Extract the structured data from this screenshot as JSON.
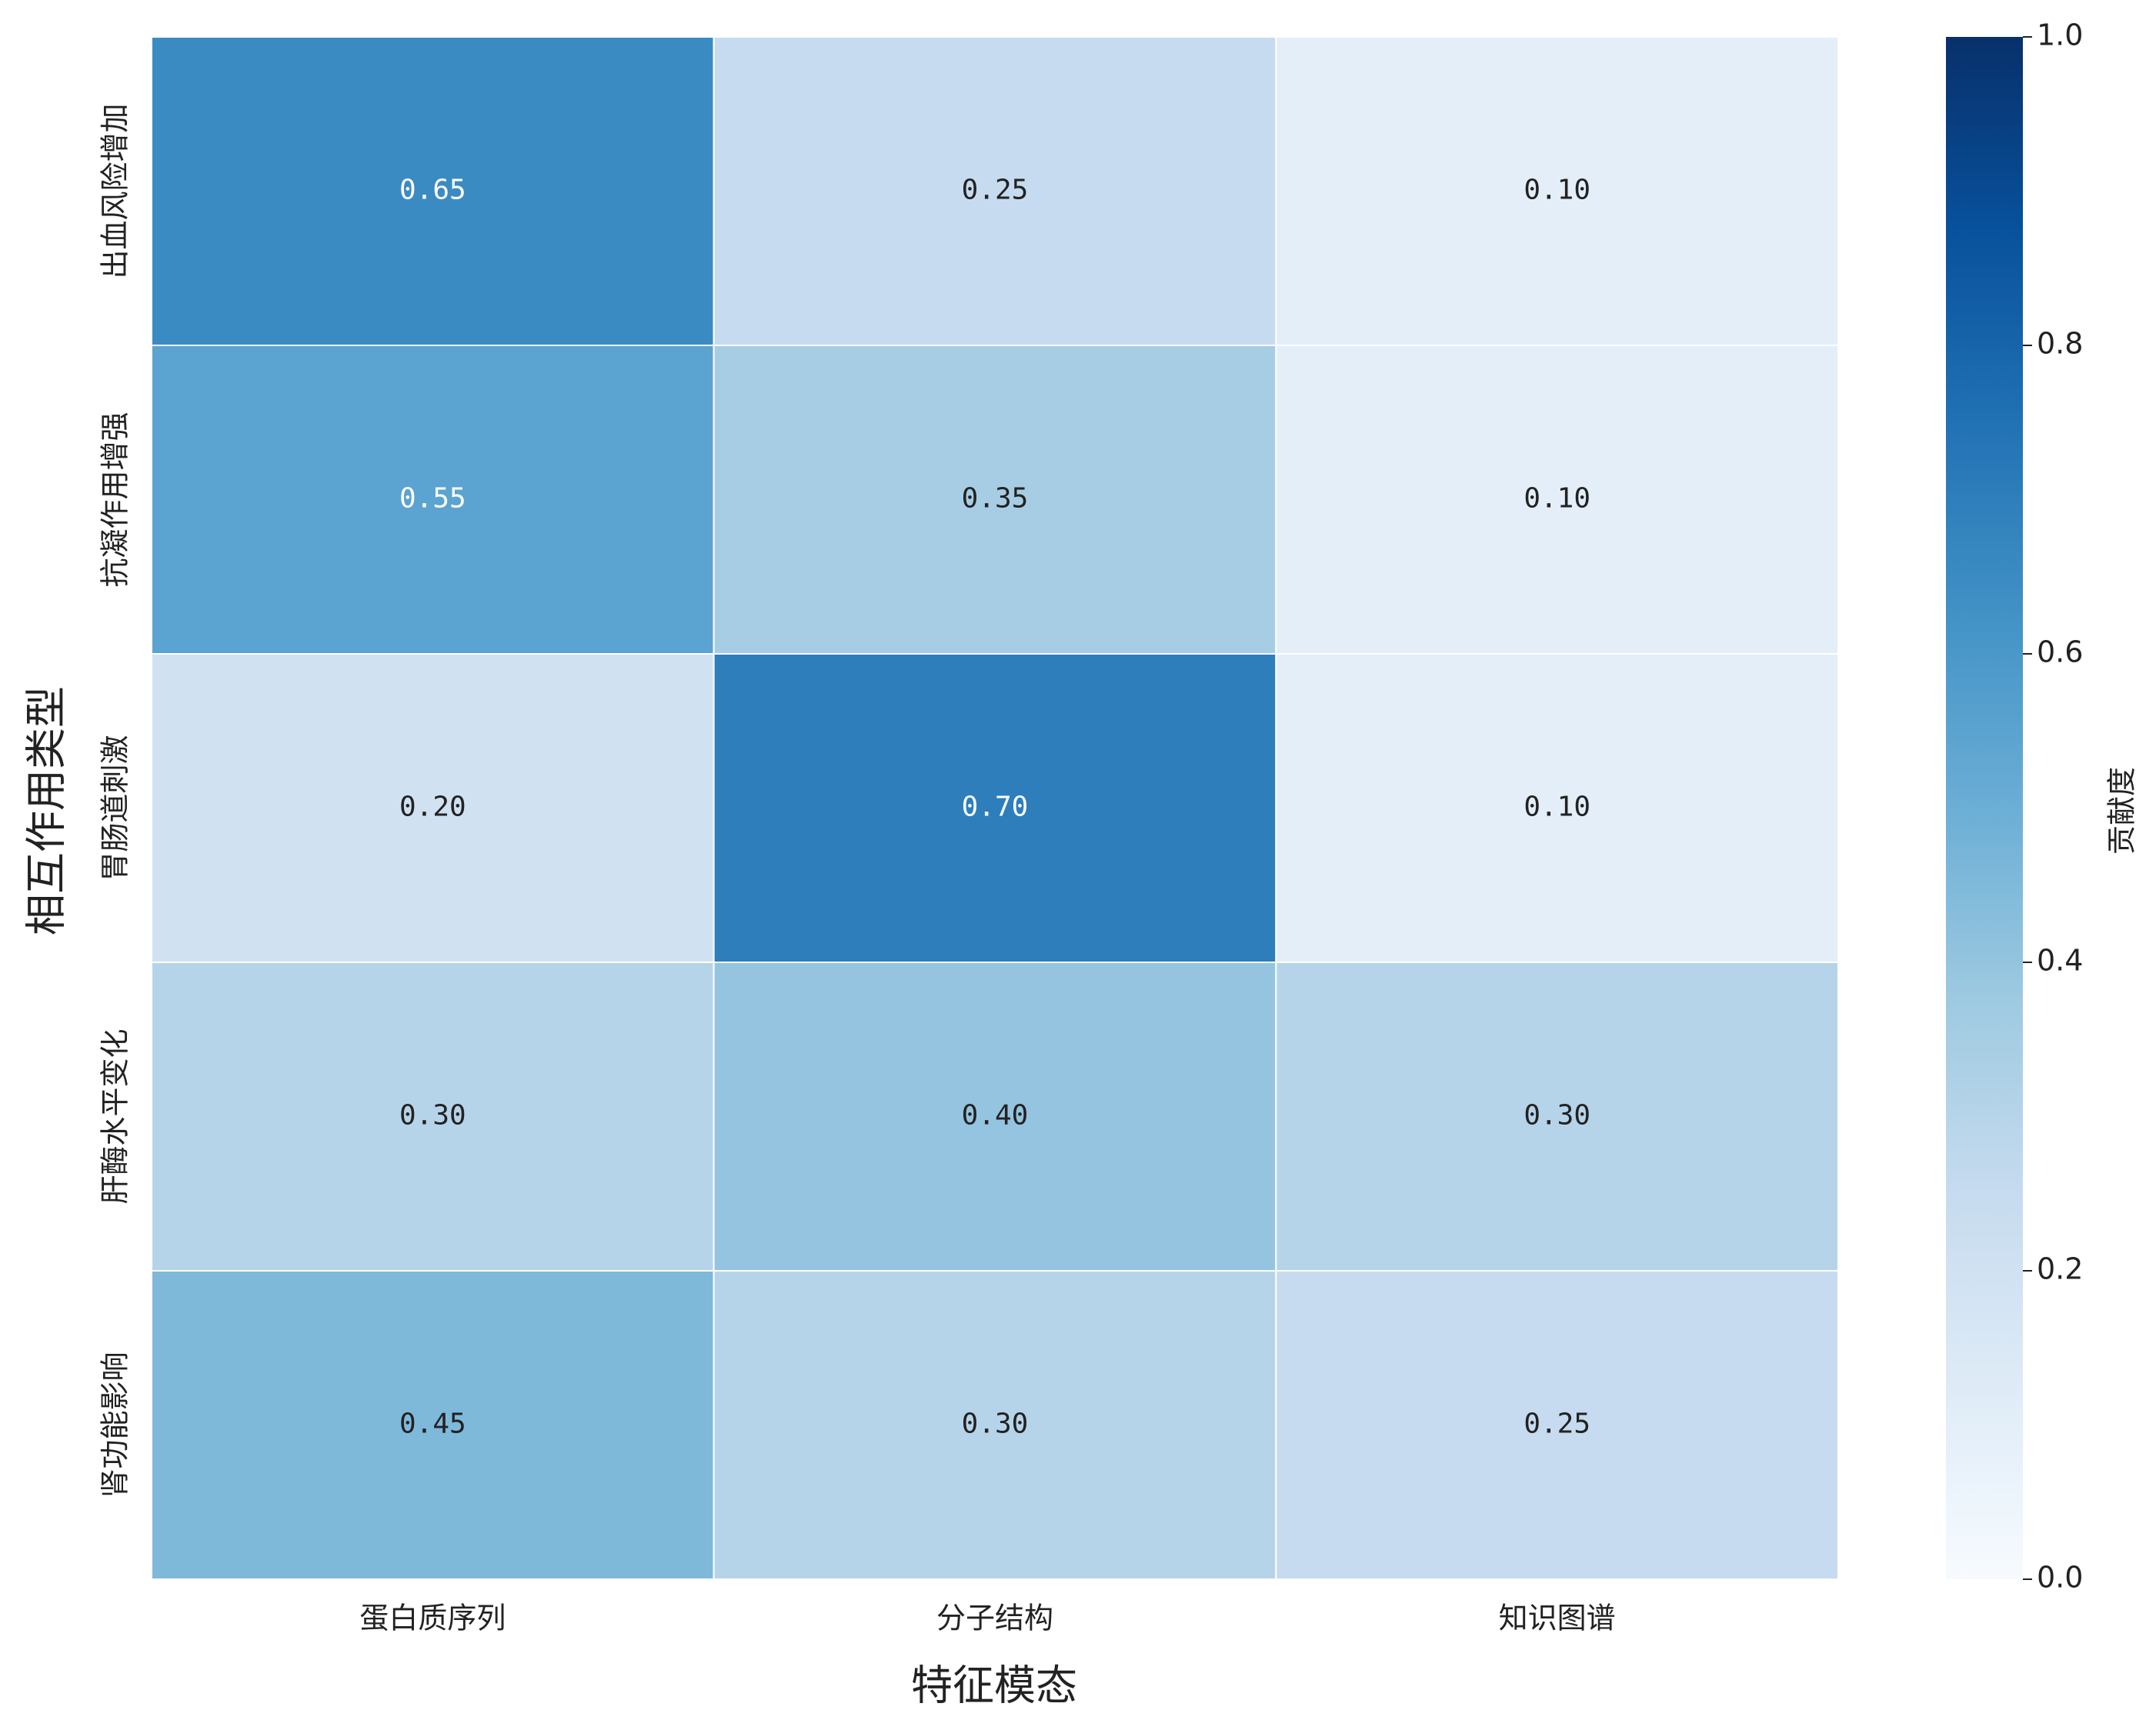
{
  "chart_data": {
    "type": "heatmap",
    "xlabel": "特征模态",
    "ylabel": "相互作用类型",
    "colorbar_label": "贡献度",
    "columns": [
      "蛋白质序列",
      "分子结构",
      "知识图谱"
    ],
    "rows": [
      "出血风险增加",
      "抗凝作用增强",
      "胃肠道刺激",
      "肝酶水平变化",
      "肾功能影响"
    ],
    "values": [
      [
        0.65,
        0.25,
        0.1
      ],
      [
        0.55,
        0.35,
        0.1
      ],
      [
        0.2,
        0.7,
        0.1
      ],
      [
        0.3,
        0.4,
        0.3
      ],
      [
        0.45,
        0.3,
        0.25
      ]
    ],
    "value_labels": [
      [
        "0.65",
        "0.25",
        "0.10"
      ],
      [
        "0.55",
        "0.35",
        "0.10"
      ],
      [
        "0.20",
        "0.70",
        "0.10"
      ],
      [
        "0.30",
        "0.40",
        "0.30"
      ],
      [
        "0.45",
        "0.30",
        "0.25"
      ]
    ],
    "cmap": "Blues",
    "clim": [
      0,
      1
    ],
    "cticks": [
      {
        "value": 0,
        "label": "0.0"
      },
      0.2,
      0.4,
      0.6,
      0.8,
      {
        "value": 1,
        "label": "1.0"
      }
    ]
  }
}
